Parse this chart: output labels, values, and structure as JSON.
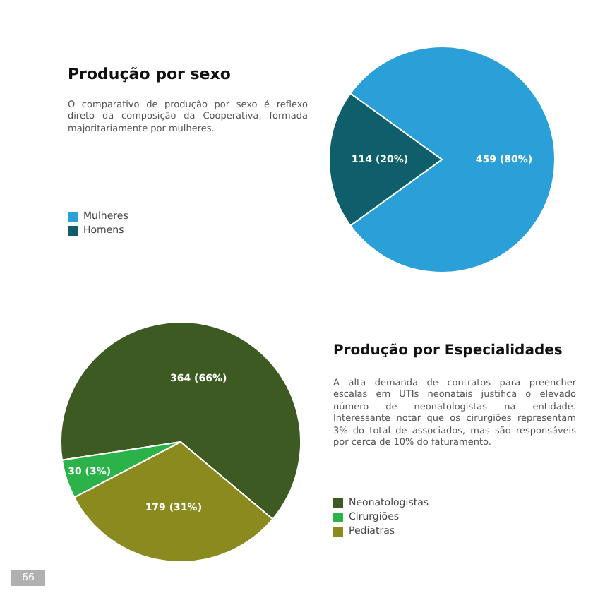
{
  "chart_data": [
    {
      "type": "pie",
      "title": "Produção por sexo",
      "subtitle": "O comparativo de produção por sexo é reflexo direto da composição da Cooperativa, formada majoritariamente por mulheres.",
      "categories": [
        "Mulheres",
        "Homens"
      ],
      "values": [
        459,
        114
      ],
      "value_labels": [
        "459 (80%)",
        "114 (20%)"
      ],
      "colors": [
        "#2a9fd8",
        "#0e5e6b"
      ],
      "legend": "left"
    },
    {
      "type": "pie",
      "title": "Produção por Especialidades",
      "subtitle": "A alta demanda de contratos para preencher escalas em UTIs neonatais justifica o elevado número de neonatologistas na entidade. Interessante notar que os cirurgiões representam 3% do total de associados, mas são responsáveis por cerca de 10% do faturamento.",
      "categories": [
        "Neonatologistas",
        "Cirurgiões",
        "Pediatras"
      ],
      "values": [
        364,
        30,
        179
      ],
      "value_labels": [
        "364 (66%)",
        "30 (3%)",
        "179 (31%)"
      ],
      "colors": [
        "#3d5a22",
        "#2bb34a",
        "#8a8a1e"
      ],
      "legend": "right",
      "annotations": [
        "66"
      ]
    }
  ]
}
